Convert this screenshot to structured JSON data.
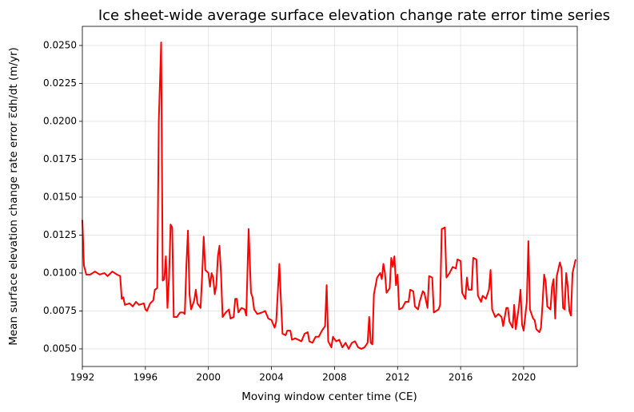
{
  "chart_data": {
    "type": "line",
    "title": "Ice sheet-wide average surface elevation change rate error time series",
    "x_label": "Moving window center time (CE)",
    "y_label": "Mean surface elevation change rate error ε̅dh/dt (m/yr)",
    "color": "#ff0000",
    "grid": true,
    "xlim": [
      1992,
      2023.4
    ],
    "xticks": [
      1992,
      1996,
      2000,
      2004,
      2008,
      2012,
      2016,
      2020
    ],
    "ylim": [
      0.00384,
      0.02626
    ],
    "yticks": [
      {
        "value": 0.005,
        "label": "0.0050"
      },
      {
        "value": 0.0075,
        "label": "0.0075"
      },
      {
        "value": 0.01,
        "label": "0.0100"
      },
      {
        "value": 0.0125,
        "label": "0.0125"
      },
      {
        "value": 0.015,
        "label": "0.0150"
      },
      {
        "value": 0.0175,
        "label": "0.0175"
      },
      {
        "value": 0.02,
        "label": "0.0200"
      },
      {
        "value": 0.0225,
        "label": "0.0225"
      },
      {
        "value": 0.025,
        "label": "0.0250"
      }
    ],
    "x": [
      1992.0,
      1992.1,
      1992.25,
      1992.5,
      1992.8,
      1993.1,
      1993.4,
      1993.6,
      1993.9,
      1994.2,
      1994.4,
      1994.5,
      1994.6,
      1994.7,
      1995.0,
      1995.2,
      1995.4,
      1995.6,
      1995.9,
      1996.0,
      1996.1,
      1996.3,
      1996.5,
      1996.6,
      1996.75,
      1996.85,
      1997.0,
      1997.1,
      1997.2,
      1997.3,
      1997.4,
      1997.5,
      1997.6,
      1997.7,
      1997.8,
      1998.0,
      1998.2,
      1998.4,
      1998.5,
      1998.6,
      1998.7,
      1998.8,
      1998.9,
      1999.1,
      1999.2,
      1999.3,
      1999.5,
      1999.6,
      1999.7,
      1999.8,
      2000.0,
      2000.1,
      2000.2,
      2000.3,
      2000.4,
      2000.5,
      2000.6,
      2000.7,
      2000.8,
      2000.9,
      2001.1,
      2001.3,
      2001.4,
      2001.6,
      2001.7,
      2001.8,
      2001.9,
      2002.1,
      2002.3,
      2002.4,
      2002.55,
      2002.7,
      2002.8,
      2002.9,
      2003.1,
      2003.4,
      2003.6,
      2003.8,
      2004.0,
      2004.2,
      2004.3,
      2004.5,
      2004.6,
      2004.7,
      2004.9,
      2005.0,
      2005.2,
      2005.3,
      2005.5,
      2005.7,
      2005.9,
      2006.1,
      2006.3,
      2006.4,
      2006.6,
      2006.8,
      2007.0,
      2007.2,
      2007.4,
      2007.5,
      2007.6,
      2007.8,
      2007.9,
      2008.1,
      2008.3,
      2008.5,
      2008.7,
      2008.9,
      2009.1,
      2009.3,
      2009.5,
      2009.7,
      2009.9,
      2010.1,
      2010.2,
      2010.3,
      2010.4,
      2010.5,
      2010.7,
      2010.9,
      2011.0,
      2011.1,
      2011.2,
      2011.3,
      2011.5,
      2011.6,
      2011.7,
      2011.8,
      2011.9,
      2012.0,
      2012.1,
      2012.3,
      2012.5,
      2012.7,
      2012.8,
      2013.0,
      2013.1,
      2013.3,
      2013.4,
      2013.6,
      2013.7,
      2013.9,
      2014.0,
      2014.2,
      2014.3,
      2014.6,
      2014.7,
      2014.8,
      2015.0,
      2015.1,
      2015.3,
      2015.5,
      2015.7,
      2015.8,
      2016.0,
      2016.1,
      2016.3,
      2016.4,
      2016.5,
      2016.7,
      2016.8,
      2017.0,
      2017.1,
      2017.3,
      2017.4,
      2017.6,
      2017.8,
      2017.9,
      2018.0,
      2018.2,
      2018.4,
      2018.6,
      2018.7,
      2018.9,
      2019.0,
      2019.1,
      2019.3,
      2019.4,
      2019.5,
      2019.7,
      2019.8,
      2019.9,
      2020.0,
      2020.2,
      2020.3,
      2020.4,
      2020.6,
      2020.7,
      2020.8,
      2021.0,
      2021.1,
      2021.2,
      2021.3,
      2021.4,
      2021.5,
      2021.7,
      2021.8,
      2021.9,
      2022.0,
      2022.1,
      2022.3,
      2022.4,
      2022.5,
      2022.6,
      2022.7,
      2022.8,
      2022.9,
      2023.0,
      2023.1,
      2023.3
    ],
    "values": [
      0.0135,
      0.0105,
      0.0099,
      0.0099,
      0.0101,
      0.0099,
      0.01,
      0.0098,
      0.0101,
      0.0099,
      0.0098,
      0.0083,
      0.0084,
      0.0079,
      0.008,
      0.0078,
      0.0081,
      0.0079,
      0.008,
      0.0076,
      0.0075,
      0.008,
      0.0082,
      0.0089,
      0.009,
      0.02,
      0.0252,
      0.0095,
      0.0096,
      0.0111,
      0.0077,
      0.0097,
      0.0132,
      0.013,
      0.0071,
      0.0071,
      0.0074,
      0.0074,
      0.0073,
      0.0105,
      0.0128,
      0.0086,
      0.0076,
      0.0082,
      0.0089,
      0.008,
      0.0077,
      0.0098,
      0.0124,
      0.0102,
      0.01,
      0.0091,
      0.01,
      0.0097,
      0.0086,
      0.0092,
      0.0111,
      0.0118,
      0.0099,
      0.0071,
      0.0074,
      0.0076,
      0.007,
      0.0071,
      0.0083,
      0.0083,
      0.0074,
      0.0077,
      0.0076,
      0.0072,
      0.0129,
      0.0087,
      0.0084,
      0.0076,
      0.0073,
      0.0074,
      0.0075,
      0.007,
      0.0069,
      0.0064,
      0.0068,
      0.0106,
      0.0082,
      0.006,
      0.0059,
      0.0062,
      0.0062,
      0.0056,
      0.0057,
      0.0056,
      0.0055,
      0.006,
      0.0061,
      0.0055,
      0.0054,
      0.0058,
      0.0058,
      0.0062,
      0.0065,
      0.0092,
      0.0055,
      0.0051,
      0.0058,
      0.0055,
      0.0056,
      0.0051,
      0.0054,
      0.005,
      0.0054,
      0.0055,
      0.0051,
      0.005,
      0.0051,
      0.0054,
      0.0071,
      0.0054,
      0.0053,
      0.0086,
      0.0097,
      0.01,
      0.0096,
      0.0106,
      0.01,
      0.0087,
      0.009,
      0.011,
      0.0104,
      0.0111,
      0.0092,
      0.0099,
      0.0076,
      0.0077,
      0.0081,
      0.0081,
      0.0089,
      0.0088,
      0.0078,
      0.0076,
      0.0081,
      0.0088,
      0.0087,
      0.0077,
      0.0098,
      0.0097,
      0.0074,
      0.0076,
      0.0079,
      0.0129,
      0.013,
      0.0097,
      0.01,
      0.0104,
      0.0103,
      0.0109,
      0.0108,
      0.0087,
      0.0083,
      0.0097,
      0.0089,
      0.0089,
      0.011,
      0.0109,
      0.0085,
      0.0081,
      0.0085,
      0.0083,
      0.0089,
      0.0102,
      0.0076,
      0.0071,
      0.0073,
      0.0071,
      0.0065,
      0.0077,
      0.0077,
      0.0068,
      0.0064,
      0.0079,
      0.0063,
      0.0078,
      0.0089,
      0.0066,
      0.0062,
      0.0081,
      0.0121,
      0.0076,
      0.007,
      0.0069,
      0.0063,
      0.0061,
      0.0064,
      0.008,
      0.0099,
      0.0094,
      0.0078,
      0.0076,
      0.0091,
      0.0096,
      0.007,
      0.0098,
      0.0107,
      0.0103,
      0.0077,
      0.0076,
      0.01,
      0.0091,
      0.0075,
      0.0072,
      0.01,
      0.0109
    ]
  }
}
